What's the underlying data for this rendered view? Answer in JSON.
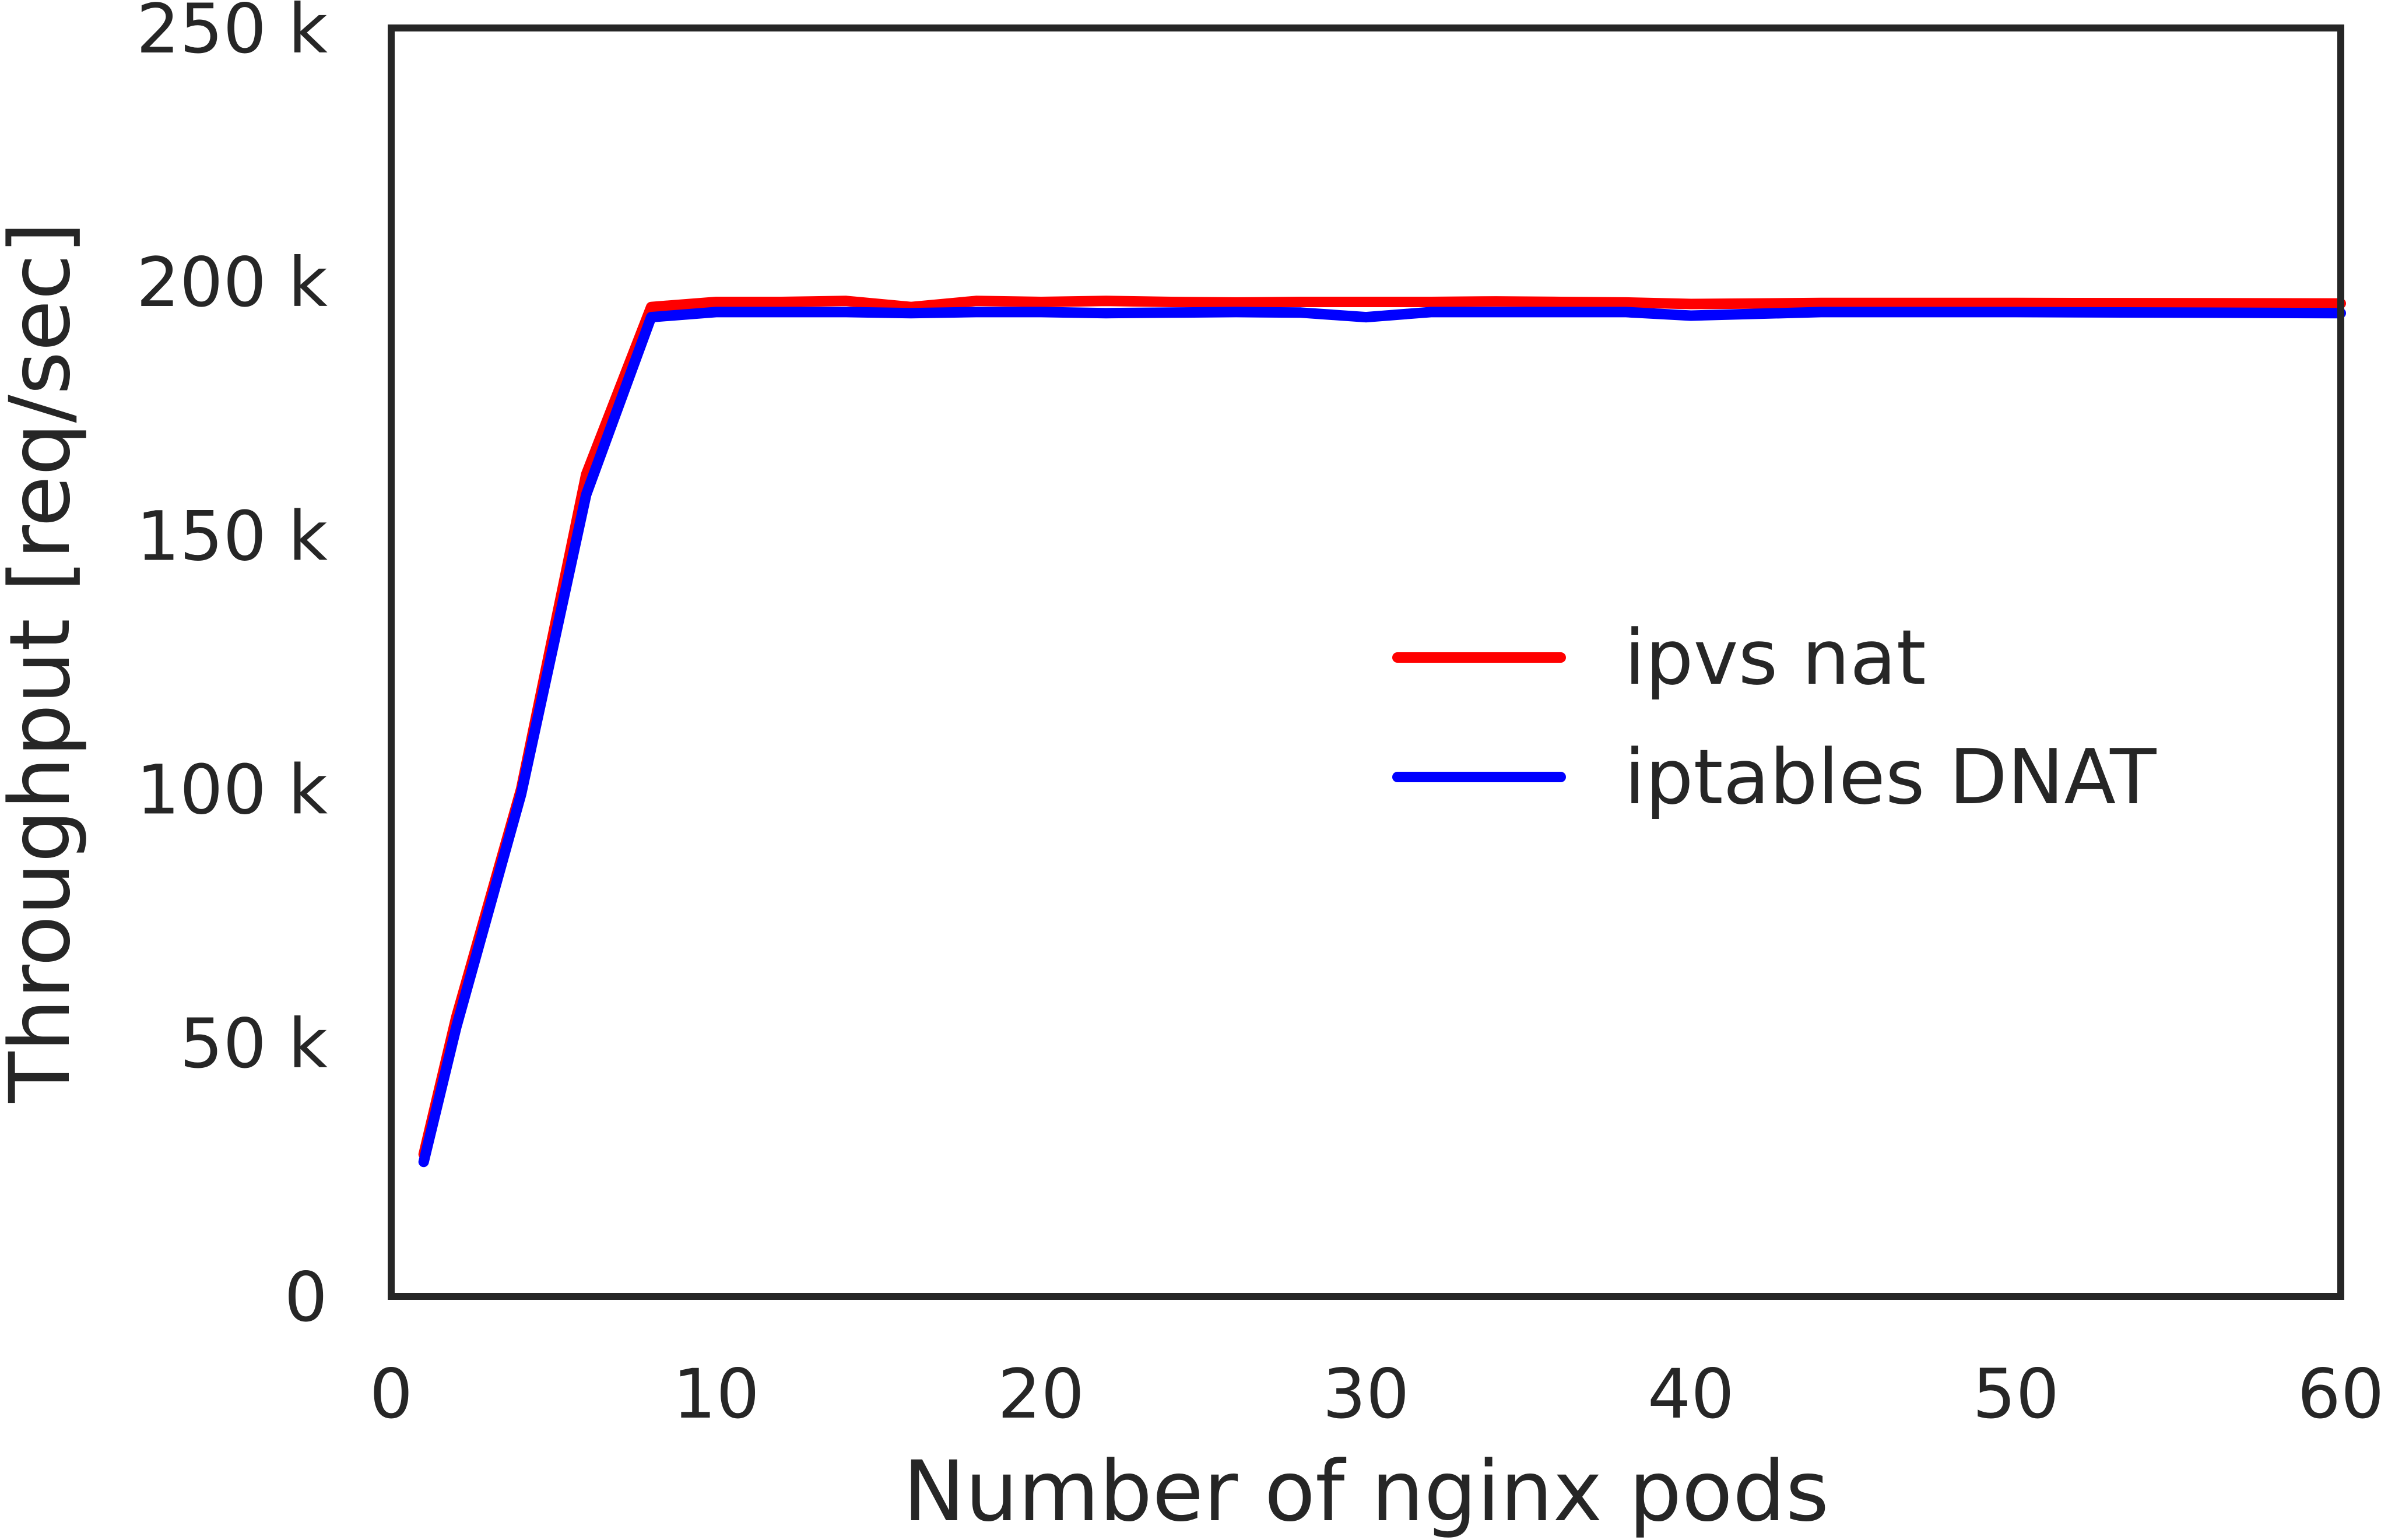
{
  "chart_data": {
    "type": "line",
    "xlabel": "Number of nginx pods",
    "ylabel": "Throughput [req/sec]",
    "xlim": [
      0,
      60
    ],
    "ylim": [
      0,
      250000
    ],
    "xticks": [
      0,
      10,
      20,
      30,
      40,
      50,
      60
    ],
    "xtick_labels": [
      "0",
      "10",
      "20",
      "30",
      "40",
      "50",
      "60"
    ],
    "yticks": [
      0,
      50000,
      100000,
      150000,
      200000,
      250000
    ],
    "ytick_labels": [
      "0",
      "50 k",
      "100 k",
      "150 k",
      "200 k",
      "250 k"
    ],
    "grid": false,
    "legend_position": "center-right",
    "series": [
      {
        "name": "ipvs nat",
        "color": "#ff0000",
        "x": [
          1,
          2,
          4,
          6,
          8,
          10,
          12,
          14,
          16,
          18,
          20,
          22,
          24,
          26,
          28,
          30,
          32,
          34,
          36,
          38,
          40,
          44,
          50,
          60
        ],
        "y": [
          28000,
          55000,
          100000,
          162000,
          195000,
          196000,
          196000,
          196200,
          195000,
          196200,
          196000,
          196200,
          196000,
          195900,
          196000,
          196000,
          196000,
          196100,
          196000,
          195900,
          195600,
          195800,
          195800,
          195700
        ]
      },
      {
        "name": "iptables DNAT",
        "color": "#0000ff",
        "x": [
          1,
          2,
          4,
          6,
          8,
          10,
          12,
          14,
          16,
          18,
          20,
          22,
          24,
          26,
          28,
          30,
          32,
          34,
          36,
          38,
          40,
          44,
          50,
          60
        ],
        "y": [
          26500,
          53000,
          99000,
          158000,
          193000,
          194000,
          194000,
          194000,
          193800,
          194000,
          194000,
          193800,
          193900,
          194000,
          193900,
          193000,
          194000,
          194000,
          194000,
          194000,
          193300,
          194000,
          194000,
          193800
        ]
      }
    ]
  }
}
